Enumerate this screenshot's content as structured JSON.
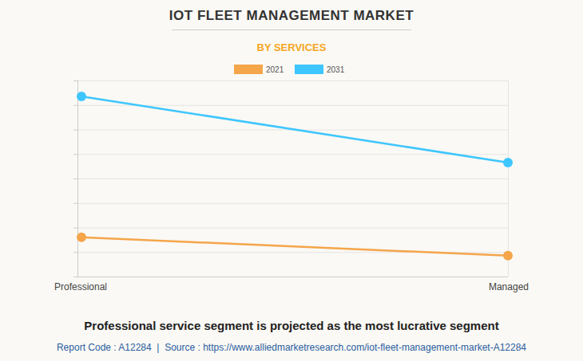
{
  "chart_data": {
    "type": "line",
    "title": "IOT FLEET MANAGEMENT MARKET",
    "subtitle": "BY SERVICES",
    "categories": [
      "Professional",
      "Managed"
    ],
    "series": [
      {
        "name": "2021",
        "color": "#f5a54a",
        "values": [
          1.6,
          0.85
        ],
        "marker": "circle"
      },
      {
        "name": "2031",
        "color": "#3ec6ff",
        "values": [
          7.35,
          4.65
        ],
        "marker": "circle"
      }
    ],
    "ylim": [
      0,
      8
    ],
    "yticks": [
      0,
      1,
      2,
      3,
      4,
      5,
      6,
      7,
      8
    ],
    "grid": true,
    "tick_labels": "x",
    "legend": "top",
    "annotations": [
      "Professional service segment is projected as the most lucrative segment",
      "Report Code : A12284  |  Source : https://www.alliedmarketresearch.com/iot-fleet-management-market-A12284"
    ]
  }
}
